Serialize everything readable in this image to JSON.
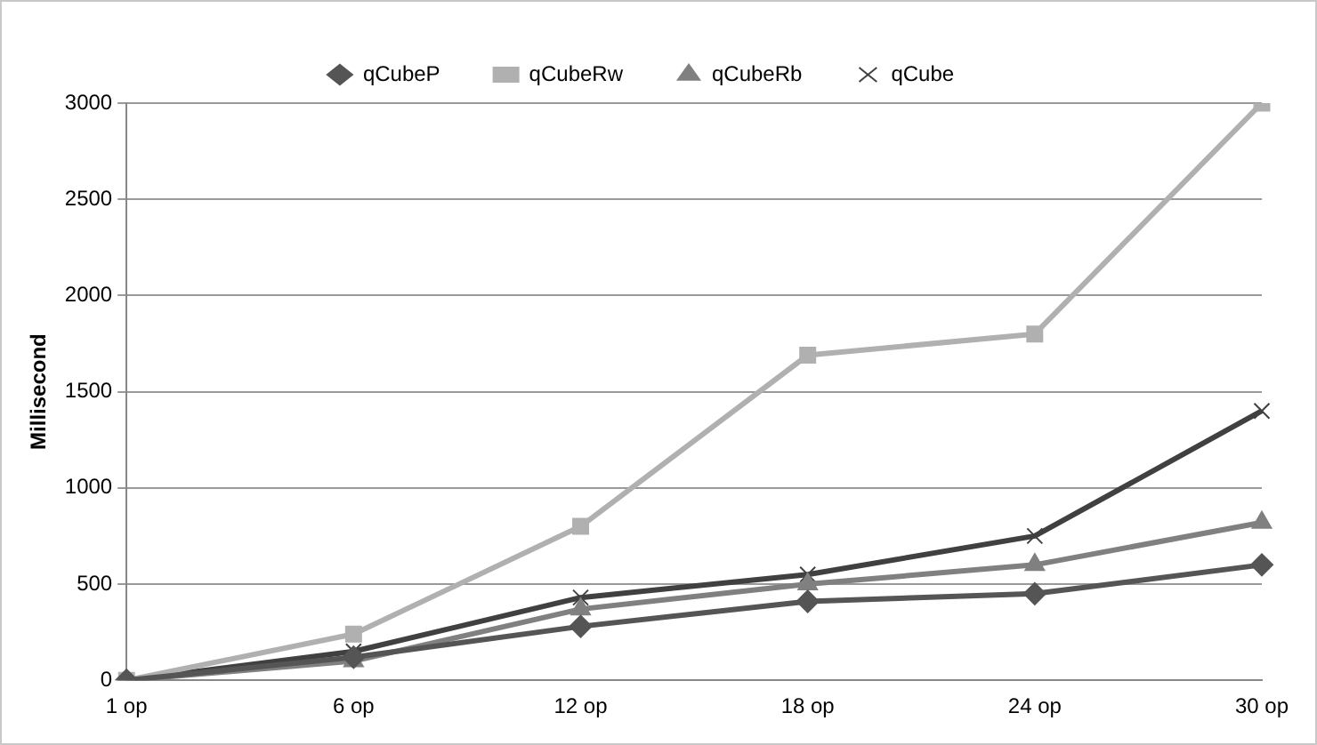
{
  "chart_data": {
    "type": "line",
    "ylabel": "Millisecond",
    "categories": [
      "1 op",
      "6 op",
      "12 op",
      "18 op",
      "24 op",
      "30 op"
    ],
    "series": [
      {
        "name": "qCubeP",
        "color": "#555555",
        "marker": "diamond",
        "values": [
          0,
          120,
          280,
          410,
          450,
          600
        ]
      },
      {
        "name": "qCubeRw",
        "color": "#b0b0b0",
        "marker": "square",
        "values": [
          0,
          240,
          800,
          1690,
          1800,
          3000
        ]
      },
      {
        "name": "qCubeRb",
        "color": "#808080",
        "marker": "triangle",
        "values": [
          0,
          100,
          370,
          500,
          600,
          820
        ]
      },
      {
        "name": "qCube",
        "color": "#404040",
        "marker": "cross",
        "values": [
          0,
          150,
          430,
          550,
          750,
          1400
        ]
      }
    ],
    "ylim": [
      0,
      3000
    ],
    "yticks": [
      0,
      500,
      1000,
      1500,
      2000,
      2500,
      3000
    ],
    "grid": "y",
    "legend": "top",
    "line_style": "solid"
  }
}
